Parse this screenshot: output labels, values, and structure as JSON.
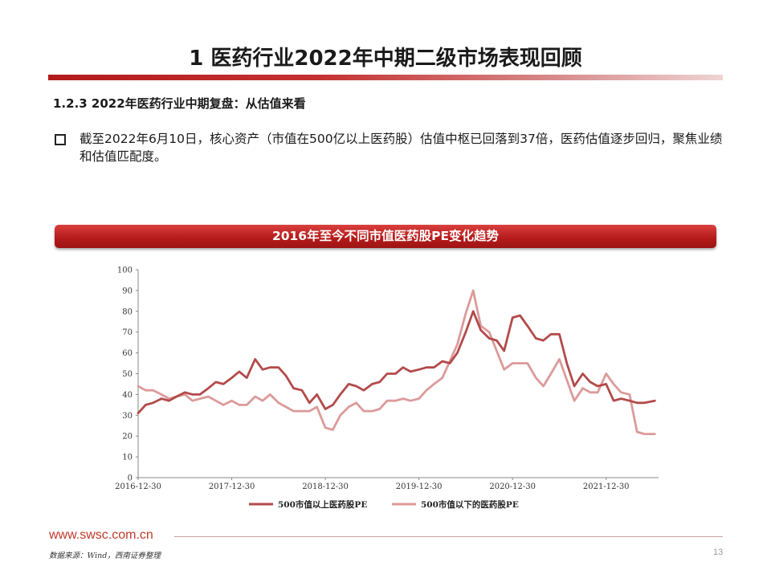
{
  "header": {
    "title": "1 医药行业2022年中期二级市场表现回顾",
    "subtitle": "1.2.3 2022年医药行业中期复盘：从估值来看"
  },
  "body": {
    "bullet": "截至2022年6月10日，核心资产（市值在500亿以上医药股）估值中枢已回落到37倍，医药估值逐步回归，聚焦业绩和估值匹配度。"
  },
  "banner": {
    "title": "2016年至今不同市值医药股PE变化趋势"
  },
  "colors": {
    "accent": "#b71c1c",
    "series_large": "#b34a4a",
    "series_small": "#dc9a9a"
  },
  "footer": {
    "url": "www.swsc.com.cn",
    "source": "数据来源：Wind，西南证券整理",
    "page": "13"
  },
  "chart_data": {
    "type": "line",
    "ylim": [
      0,
      100
    ],
    "yticks": [
      "0",
      "10",
      "20",
      "30",
      "40",
      "50",
      "60",
      "70",
      "80",
      "90",
      "100"
    ],
    "xticks": [
      "2016-12-30",
      "2017-12-30",
      "2018-12-30",
      "2019-12-30",
      "2020-12-30",
      "2021-12-30"
    ],
    "grid": false,
    "legend": "bottom",
    "x": [
      2016.92,
      2017.0,
      2017.08,
      2017.17,
      2017.25,
      2017.33,
      2017.42,
      2017.5,
      2017.58,
      2017.67,
      2017.75,
      2017.83,
      2017.92,
      2018.0,
      2018.08,
      2018.17,
      2018.25,
      2018.33,
      2018.42,
      2018.5,
      2018.58,
      2018.67,
      2018.75,
      2018.83,
      2018.92,
      2019.0,
      2019.08,
      2019.17,
      2019.25,
      2019.33,
      2019.42,
      2019.5,
      2019.58,
      2019.67,
      2019.75,
      2019.83,
      2019.92,
      2020.0,
      2020.08,
      2020.17,
      2020.25,
      2020.33,
      2020.42,
      2020.5,
      2020.58,
      2020.67,
      2020.75,
      2020.83,
      2020.92,
      2021.0,
      2021.08,
      2021.17,
      2021.25,
      2021.33,
      2021.42,
      2021.5,
      2021.58,
      2021.67,
      2021.75,
      2021.83,
      2021.92,
      2022.0,
      2022.08,
      2022.17,
      2022.25,
      2022.33,
      2022.44
    ],
    "series": [
      {
        "name": "500市值以上医药股PE",
        "values": [
          31,
          35,
          36,
          38,
          37,
          39,
          41,
          40,
          40,
          43,
          46,
          45,
          48,
          51,
          48,
          57,
          52,
          53,
          53,
          49,
          43,
          42,
          36,
          40,
          33,
          35,
          40,
          45,
          44,
          42,
          45,
          46,
          50,
          50,
          53,
          51,
          52,
          53,
          53,
          56,
          55,
          60,
          70,
          80,
          71,
          67,
          66,
          61,
          77,
          78,
          73,
          67,
          66,
          69,
          69,
          55,
          44,
          50,
          46,
          44,
          45,
          37,
          38,
          37,
          36,
          36,
          37
        ]
      },
      {
        "name": "500市值以下的医药股PE",
        "values": [
          44,
          42,
          42,
          40,
          38,
          39,
          40,
          37,
          38,
          39,
          37,
          35,
          37,
          35,
          35,
          39,
          37,
          40,
          36,
          34,
          32,
          32,
          32,
          34,
          24,
          23,
          30,
          34,
          36,
          32,
          32,
          33,
          37,
          37,
          38,
          37,
          38,
          42,
          45,
          48,
          56,
          64,
          79,
          90,
          73,
          70,
          61,
          52,
          55,
          55,
          55,
          48,
          44,
          50,
          57,
          47,
          37,
          43,
          41,
          41,
          50,
          45,
          41,
          40,
          22,
          21,
          21
        ]
      }
    ]
  }
}
